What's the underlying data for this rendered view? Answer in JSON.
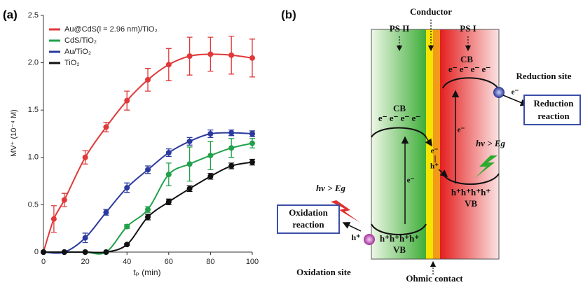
{
  "figure_labels": {
    "a": "(a)",
    "b": "(b)"
  },
  "chart_data": {
    "type": "line",
    "y_label": "MV⁺ (10⁻⁴ M)",
    "x_label": "tₚ (min)",
    "xlim": [
      0,
      100
    ],
    "xticks": [
      0,
      20,
      40,
      60,
      80,
      100
    ],
    "ylim": [
      0,
      2.5
    ],
    "yticks": [
      0,
      0.5,
      {
        "value": 1,
        "label": "1.0"
      },
      1.5,
      {
        "value": 2,
        "label": "2.0"
      },
      2.5
    ],
    "legend": "upper left",
    "series": [
      {
        "name": "Au@CdS(l = 2.96 nm)/TiO₂",
        "color": "#e0393a",
        "x": [
          0,
          5,
          10,
          20,
          30,
          40,
          50,
          60,
          70,
          80,
          90,
          100
        ],
        "values": [
          0,
          0.35,
          0.55,
          1.0,
          1.32,
          1.6,
          1.82,
          1.98,
          2.07,
          2.09,
          2.08,
          2.05
        ],
        "errors": [
          0,
          0.14,
          0.07,
          0.07,
          0.05,
          0.1,
          0.12,
          0.17,
          0.2,
          0.18,
          0.2,
          0.2
        ]
      },
      {
        "name": "CdS/TiO₂",
        "color": "#22a14a",
        "x": [
          0,
          10,
          20,
          30,
          40,
          50,
          60,
          70,
          80,
          90,
          100
        ],
        "values": [
          0,
          0,
          0,
          0,
          0.27,
          0.45,
          0.82,
          0.93,
          1.02,
          1.1,
          1.15
        ],
        "errors": [
          0,
          0,
          0,
          0,
          0.02,
          0.03,
          0.12,
          0.18,
          0.15,
          0.1,
          0.05
        ]
      },
      {
        "name": "Au/TiO₂",
        "color": "#2b3a9e",
        "x": [
          0,
          10,
          20,
          30,
          40,
          50,
          60,
          70,
          80,
          90,
          100
        ],
        "values": [
          0,
          0,
          0.15,
          0.42,
          0.68,
          0.87,
          1.05,
          1.17,
          1.25,
          1.26,
          1.25
        ],
        "errors": [
          0,
          0,
          0.05,
          0.03,
          0.05,
          0.04,
          0.04,
          0.04,
          0.04,
          0.03,
          0.03
        ]
      },
      {
        "name": "TiO₂",
        "color": "#111111",
        "x": [
          0,
          10,
          20,
          30,
          40,
          50,
          60,
          70,
          80,
          90,
          100
        ],
        "values": [
          0,
          0,
          0,
          0,
          0.08,
          0.37,
          0.53,
          0.67,
          0.8,
          0.91,
          0.95
        ],
        "errors": [
          0,
          0,
          0,
          0,
          0.01,
          0.03,
          0.03,
          0.03,
          0.03,
          0.03,
          0.03
        ]
      }
    ]
  },
  "diagram": {
    "conductor": "Conductor",
    "ps2": "PS II",
    "ps1": "PS I",
    "ps1_cb": "CB",
    "ps1_cb_electrons": "e⁻ e⁻ e⁻ e⁻",
    "ps2_cb": "CB",
    "ps2_cb_electrons": "e⁻ e⁻ e⁻ e⁻",
    "reduction_site": "Reduction site",
    "reduction_electron": "e⁻",
    "reduction_reaction_1": "Reduction",
    "reduction_reaction_2": "reaction",
    "conductor_electron": "e⁻",
    "conductor_hole": "h⁺",
    "ps1_excitation_electron": "e⁻",
    "ps2_excitation_electron": "e⁻",
    "ps1_photon": "hν > Eg",
    "ps2_photon": "hν > Eg",
    "ps1_vb_holes": "h⁺h⁺h⁺h⁺",
    "ps1_vb": "VB",
    "ps2_vb_holes": "h⁺h⁺h⁺h⁺",
    "ps2_vb": "VB",
    "oxidation_reaction_1": "Oxidation",
    "oxidation_reaction_2": "reaction",
    "oxidation_hole": "h⁺",
    "oxidation_site": "Oxidation site",
    "ohmic_contact": "Ohmic contact"
  }
}
